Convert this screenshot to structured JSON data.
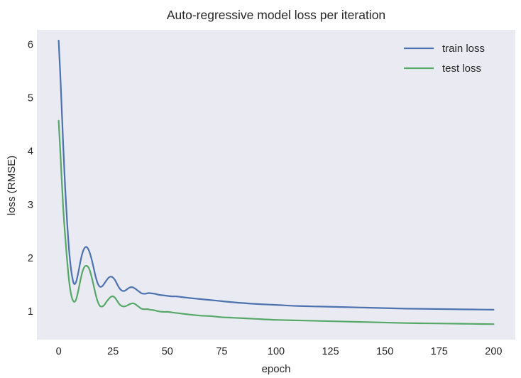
{
  "chart_data": {
    "type": "line",
    "title": "Auto-regressive model loss per iteration",
    "xlabel": "epoch",
    "ylabel": "loss (RMSE)",
    "xlim": [
      -10,
      210
    ],
    "ylim": [
      0.47,
      6.27
    ],
    "xticks": [
      0,
      25,
      50,
      75,
      100,
      125,
      150,
      175,
      200
    ],
    "yticks": [
      1,
      2,
      3,
      4,
      5,
      6
    ],
    "grid": false,
    "legend_position": "top-right",
    "background_color": "#eaeaf2",
    "series": [
      {
        "name": "train loss",
        "color": "#4c72b0",
        "x": [
          0,
          1,
          2,
          3,
          4,
          5,
          6,
          7,
          8,
          9,
          10,
          11,
          12,
          13,
          14,
          15,
          16,
          17,
          18,
          19,
          20,
          21,
          22,
          23,
          24,
          25,
          26,
          27,
          28,
          29,
          30,
          31,
          32,
          33,
          34,
          35,
          36,
          37,
          38,
          39,
          40,
          41,
          42,
          44,
          46,
          48,
          50,
          52,
          54,
          56,
          58,
          60,
          65,
          70,
          75,
          80,
          90,
          100,
          110,
          120,
          130,
          140,
          150,
          160,
          170,
          180,
          190,
          200
        ],
        "y": [
          6.07,
          5.2,
          4.2,
          3.3,
          2.6,
          2.05,
          1.7,
          1.52,
          1.55,
          1.72,
          1.93,
          2.1,
          2.19,
          2.2,
          2.13,
          2.0,
          1.83,
          1.65,
          1.52,
          1.46,
          1.47,
          1.52,
          1.58,
          1.63,
          1.65,
          1.63,
          1.58,
          1.5,
          1.43,
          1.39,
          1.38,
          1.4,
          1.43,
          1.45,
          1.45,
          1.43,
          1.4,
          1.37,
          1.34,
          1.33,
          1.33,
          1.34,
          1.34,
          1.33,
          1.31,
          1.3,
          1.29,
          1.28,
          1.28,
          1.27,
          1.26,
          1.25,
          1.23,
          1.21,
          1.19,
          1.17,
          1.14,
          1.12,
          1.1,
          1.09,
          1.08,
          1.07,
          1.06,
          1.05,
          1.045,
          1.04,
          1.035,
          1.03
        ]
      },
      {
        "name": "test loss",
        "color": "#55a868",
        "x": [
          0,
          1,
          2,
          3,
          4,
          5,
          6,
          7,
          8,
          9,
          10,
          11,
          12,
          13,
          14,
          15,
          16,
          17,
          18,
          19,
          20,
          21,
          22,
          23,
          24,
          25,
          26,
          27,
          28,
          29,
          30,
          31,
          32,
          33,
          34,
          35,
          36,
          37,
          38,
          39,
          40,
          41,
          42,
          44,
          46,
          48,
          50,
          52,
          54,
          56,
          58,
          60,
          65,
          70,
          75,
          80,
          90,
          100,
          110,
          120,
          130,
          140,
          150,
          160,
          170,
          180,
          190,
          200
        ],
        "y": [
          4.57,
          3.8,
          3.0,
          2.4,
          1.9,
          1.5,
          1.27,
          1.18,
          1.22,
          1.38,
          1.58,
          1.75,
          1.84,
          1.85,
          1.8,
          1.67,
          1.5,
          1.32,
          1.18,
          1.1,
          1.09,
          1.12,
          1.18,
          1.23,
          1.27,
          1.28,
          1.25,
          1.19,
          1.13,
          1.1,
          1.09,
          1.1,
          1.12,
          1.14,
          1.15,
          1.14,
          1.11,
          1.08,
          1.05,
          1.04,
          1.04,
          1.04,
          1.03,
          1.02,
          1.0,
          0.99,
          0.99,
          0.98,
          0.97,
          0.96,
          0.95,
          0.94,
          0.92,
          0.91,
          0.89,
          0.88,
          0.86,
          0.84,
          0.83,
          0.82,
          0.81,
          0.8,
          0.79,
          0.78,
          0.775,
          0.77,
          0.765,
          0.76
        ]
      }
    ]
  }
}
